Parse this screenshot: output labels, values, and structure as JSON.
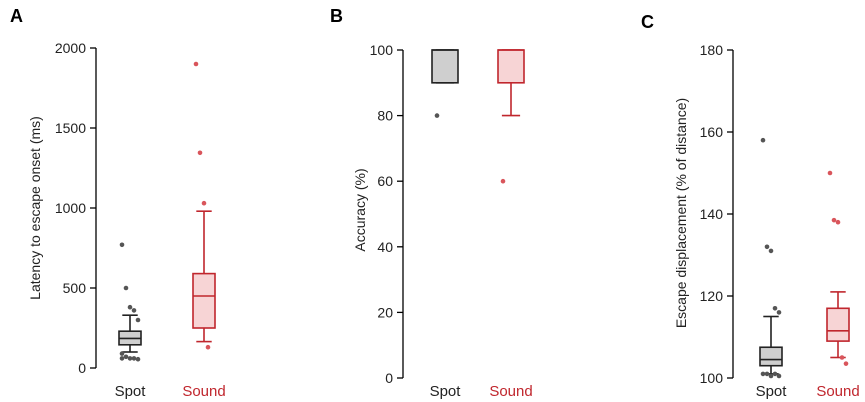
{
  "colors": {
    "spot": "#222222",
    "spot_fill": "#cfcfcf",
    "sound": "#c0262d",
    "sound_fill": "#f7d4d5",
    "axis": "#000000"
  },
  "chart_data": [
    {
      "type": "box",
      "panel": "A",
      "ylabel": "Latency to escape onset (ms)",
      "ylim": [
        0,
        2000
      ],
      "yticks": [
        "0",
        "500",
        "1000",
        "1500",
        "2000"
      ],
      "categories": [
        "Spot",
        "Sound"
      ],
      "boxes": [
        {
          "label": "Spot",
          "whisker_low": 100,
          "q1": 145,
          "median": 185,
          "q3": 230,
          "whisker_high": 330,
          "outliers": [
            770,
            500,
            380,
            360,
            300,
            90,
            70,
            60,
            60,
            55,
            60
          ]
        },
        {
          "label": "Sound",
          "whisker_low": 165,
          "q1": 250,
          "median": 450,
          "q3": 590,
          "whisker_high": 980,
          "outliers": [
            1900,
            1345,
            1030,
            130
          ]
        }
      ]
    },
    {
      "type": "box",
      "panel": "B",
      "ylabel": "Accuracy (%)",
      "ylim": [
        0,
        100
      ],
      "yticks": [
        "0",
        "20",
        "40",
        "60",
        "80",
        "100"
      ],
      "categories": [
        "Spot",
        "Sound"
      ],
      "boxes": [
        {
          "label": "Spot",
          "whisker_low": 90,
          "q1": 90,
          "median": 100,
          "q3": 100,
          "whisker_high": 100,
          "outliers": [
            80
          ]
        },
        {
          "label": "Sound",
          "whisker_low": 80,
          "q1": 90,
          "median": 100,
          "q3": 100,
          "whisker_high": 100,
          "outliers": [
            60
          ]
        }
      ]
    },
    {
      "type": "box",
      "panel": "C",
      "ylabel": "Escape displacement (% of distance)",
      "ylim": [
        100,
        180
      ],
      "yticks": [
        "100",
        "120",
        "140",
        "160",
        "180"
      ],
      "categories": [
        "Spot",
        "Sound"
      ],
      "boxes": [
        {
          "label": "Spot",
          "whisker_low": 101,
          "q1": 103,
          "median": 104.5,
          "q3": 107.5,
          "whisker_high": 115,
          "outliers": [
            158,
            132,
            131,
            117,
            116,
            101,
            101,
            100.5,
            101,
            100.5
          ]
        },
        {
          "label": "Sound",
          "whisker_low": 105,
          "q1": 109,
          "median": 111.5,
          "q3": 117,
          "whisker_high": 121,
          "outliers": [
            150,
            138.5,
            138,
            105,
            103.5
          ]
        }
      ]
    }
  ]
}
